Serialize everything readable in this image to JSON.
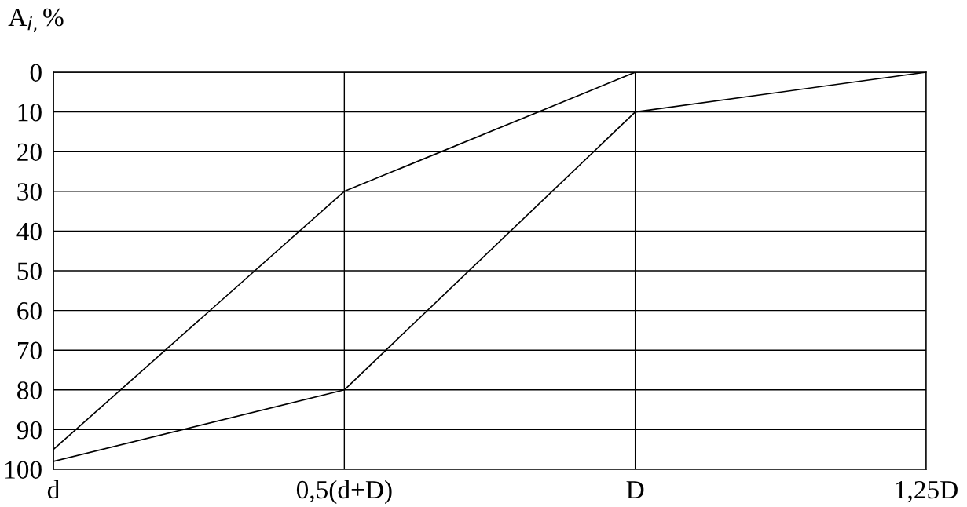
{
  "chart_data": {
    "type": "line",
    "ylabel": "A$_{i,}$%",
    "categories": [
      "d",
      "0,5(d+D)",
      "D",
      "1,25D"
    ],
    "series": [
      {
        "color": "#000000",
        "values": [
          95,
          30,
          0,
          null
        ]
      },
      {
        "color": "#000000",
        "values": [
          98,
          80,
          10,
          0
        ]
      }
    ],
    "ylim": [
      100,
      0
    ],
    "yticks": [
      0,
      10,
      20,
      30,
      40,
      50,
      60,
      70,
      80,
      90,
      100
    ],
    "grid": true,
    "marker": "none",
    "line_style": "solid",
    "legend": false
  }
}
